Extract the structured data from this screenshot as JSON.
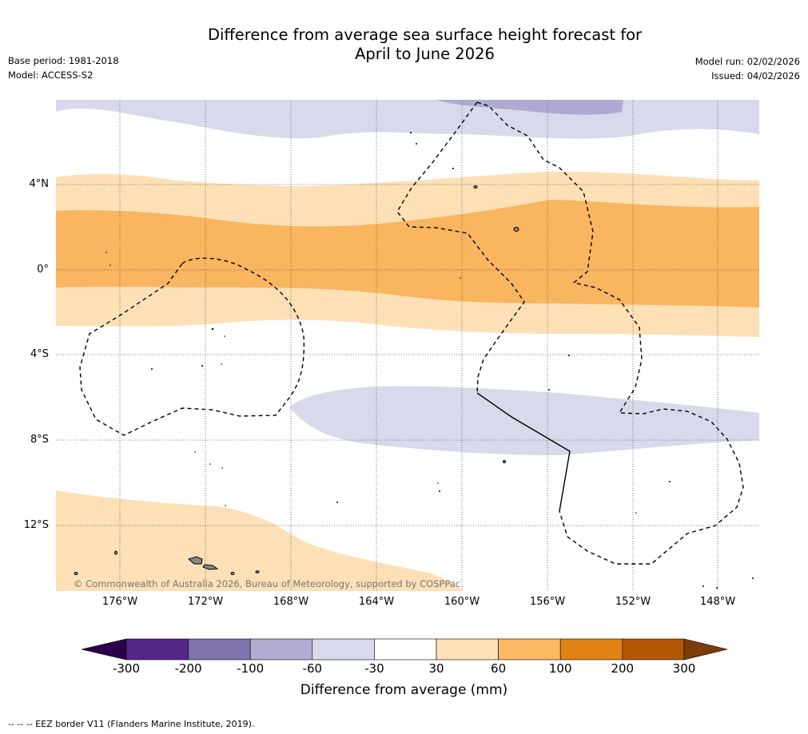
{
  "title": {
    "line1": "Difference from average sea surface height forecast for",
    "line2": "April to June 2026"
  },
  "meta": {
    "base_period": "Base period: 1981-2018",
    "model": "Model: ACCESS-S2",
    "model_run": "Model run: 02/02/2026",
    "issued": "Issued: 04/02/2026"
  },
  "map": {
    "lat_labels": [
      "4°N",
      "0°",
      "4°S",
      "8°S",
      "12°S"
    ],
    "lon_labels": [
      "176°W",
      "172°W",
      "168°W",
      "164°W",
      "160°W",
      "156°W",
      "152°W",
      "148°W"
    ],
    "copyright": "© Commonwealth of Australia 2026, Bureau of Meteorology, supported by COSPPac",
    "colors": {
      "ocean_white": "#ffffff",
      "pale_lavender": "#d8d9ea",
      "light_purple": "#b0aad2",
      "pale_orange": "#fde0b6",
      "light_orange": "#f9b55f",
      "land": "#888888"
    }
  },
  "colorbar": {
    "labels": [
      "-300",
      "-200",
      "-100",
      "-60",
      "-30",
      "30",
      "60",
      "100",
      "200",
      "300"
    ],
    "colors": [
      "#2d004b",
      "#542788",
      "#8073ac",
      "#b2abd2",
      "#d8daeb",
      "#ffffff",
      "#fee0b6",
      "#fdb863",
      "#e08214",
      "#b35806",
      "#7f3b08"
    ],
    "title": "Difference from average (mm)"
  },
  "footnote": "--  --  -- EEZ border V11 (Flanders Marine Institute, 2019)."
}
